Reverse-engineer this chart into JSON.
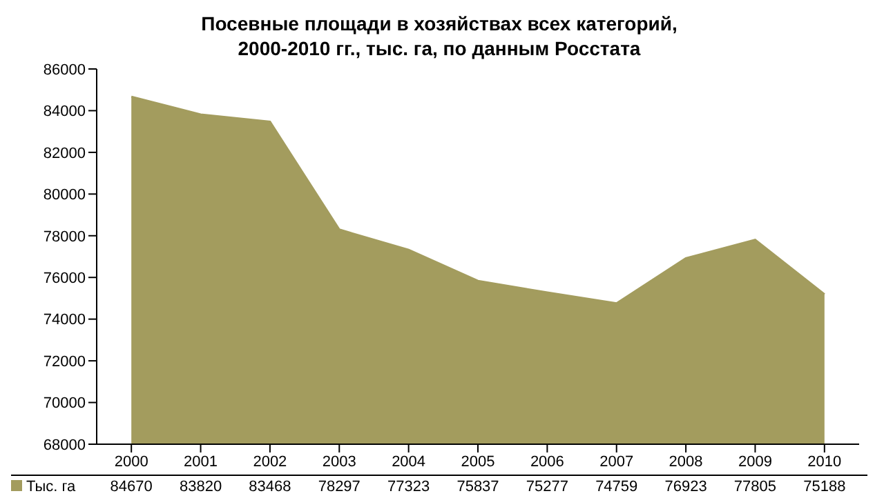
{
  "chart_data": {
    "type": "area",
    "title": "Посевные площади в хозяйствах всех категорий,\n2000-2010 гг., тыс. га, по данным Росстата",
    "categories": [
      "2000",
      "2001",
      "2002",
      "2003",
      "2004",
      "2005",
      "2006",
      "2007",
      "2008",
      "2009",
      "2010"
    ],
    "series": [
      {
        "name": "Тыс. га",
        "color": "#a39c5e",
        "values": [
          84670,
          83820,
          83468,
          78297,
          77323,
          75837,
          75277,
          74759,
          76923,
          77805,
          75188
        ]
      }
    ],
    "ylim": [
      68000,
      86000
    ],
    "yticks": [
      68000,
      70000,
      72000,
      74000,
      76000,
      78000,
      80000,
      82000,
      84000,
      86000
    ],
    "legend": "bottom",
    "data_labels": true
  }
}
